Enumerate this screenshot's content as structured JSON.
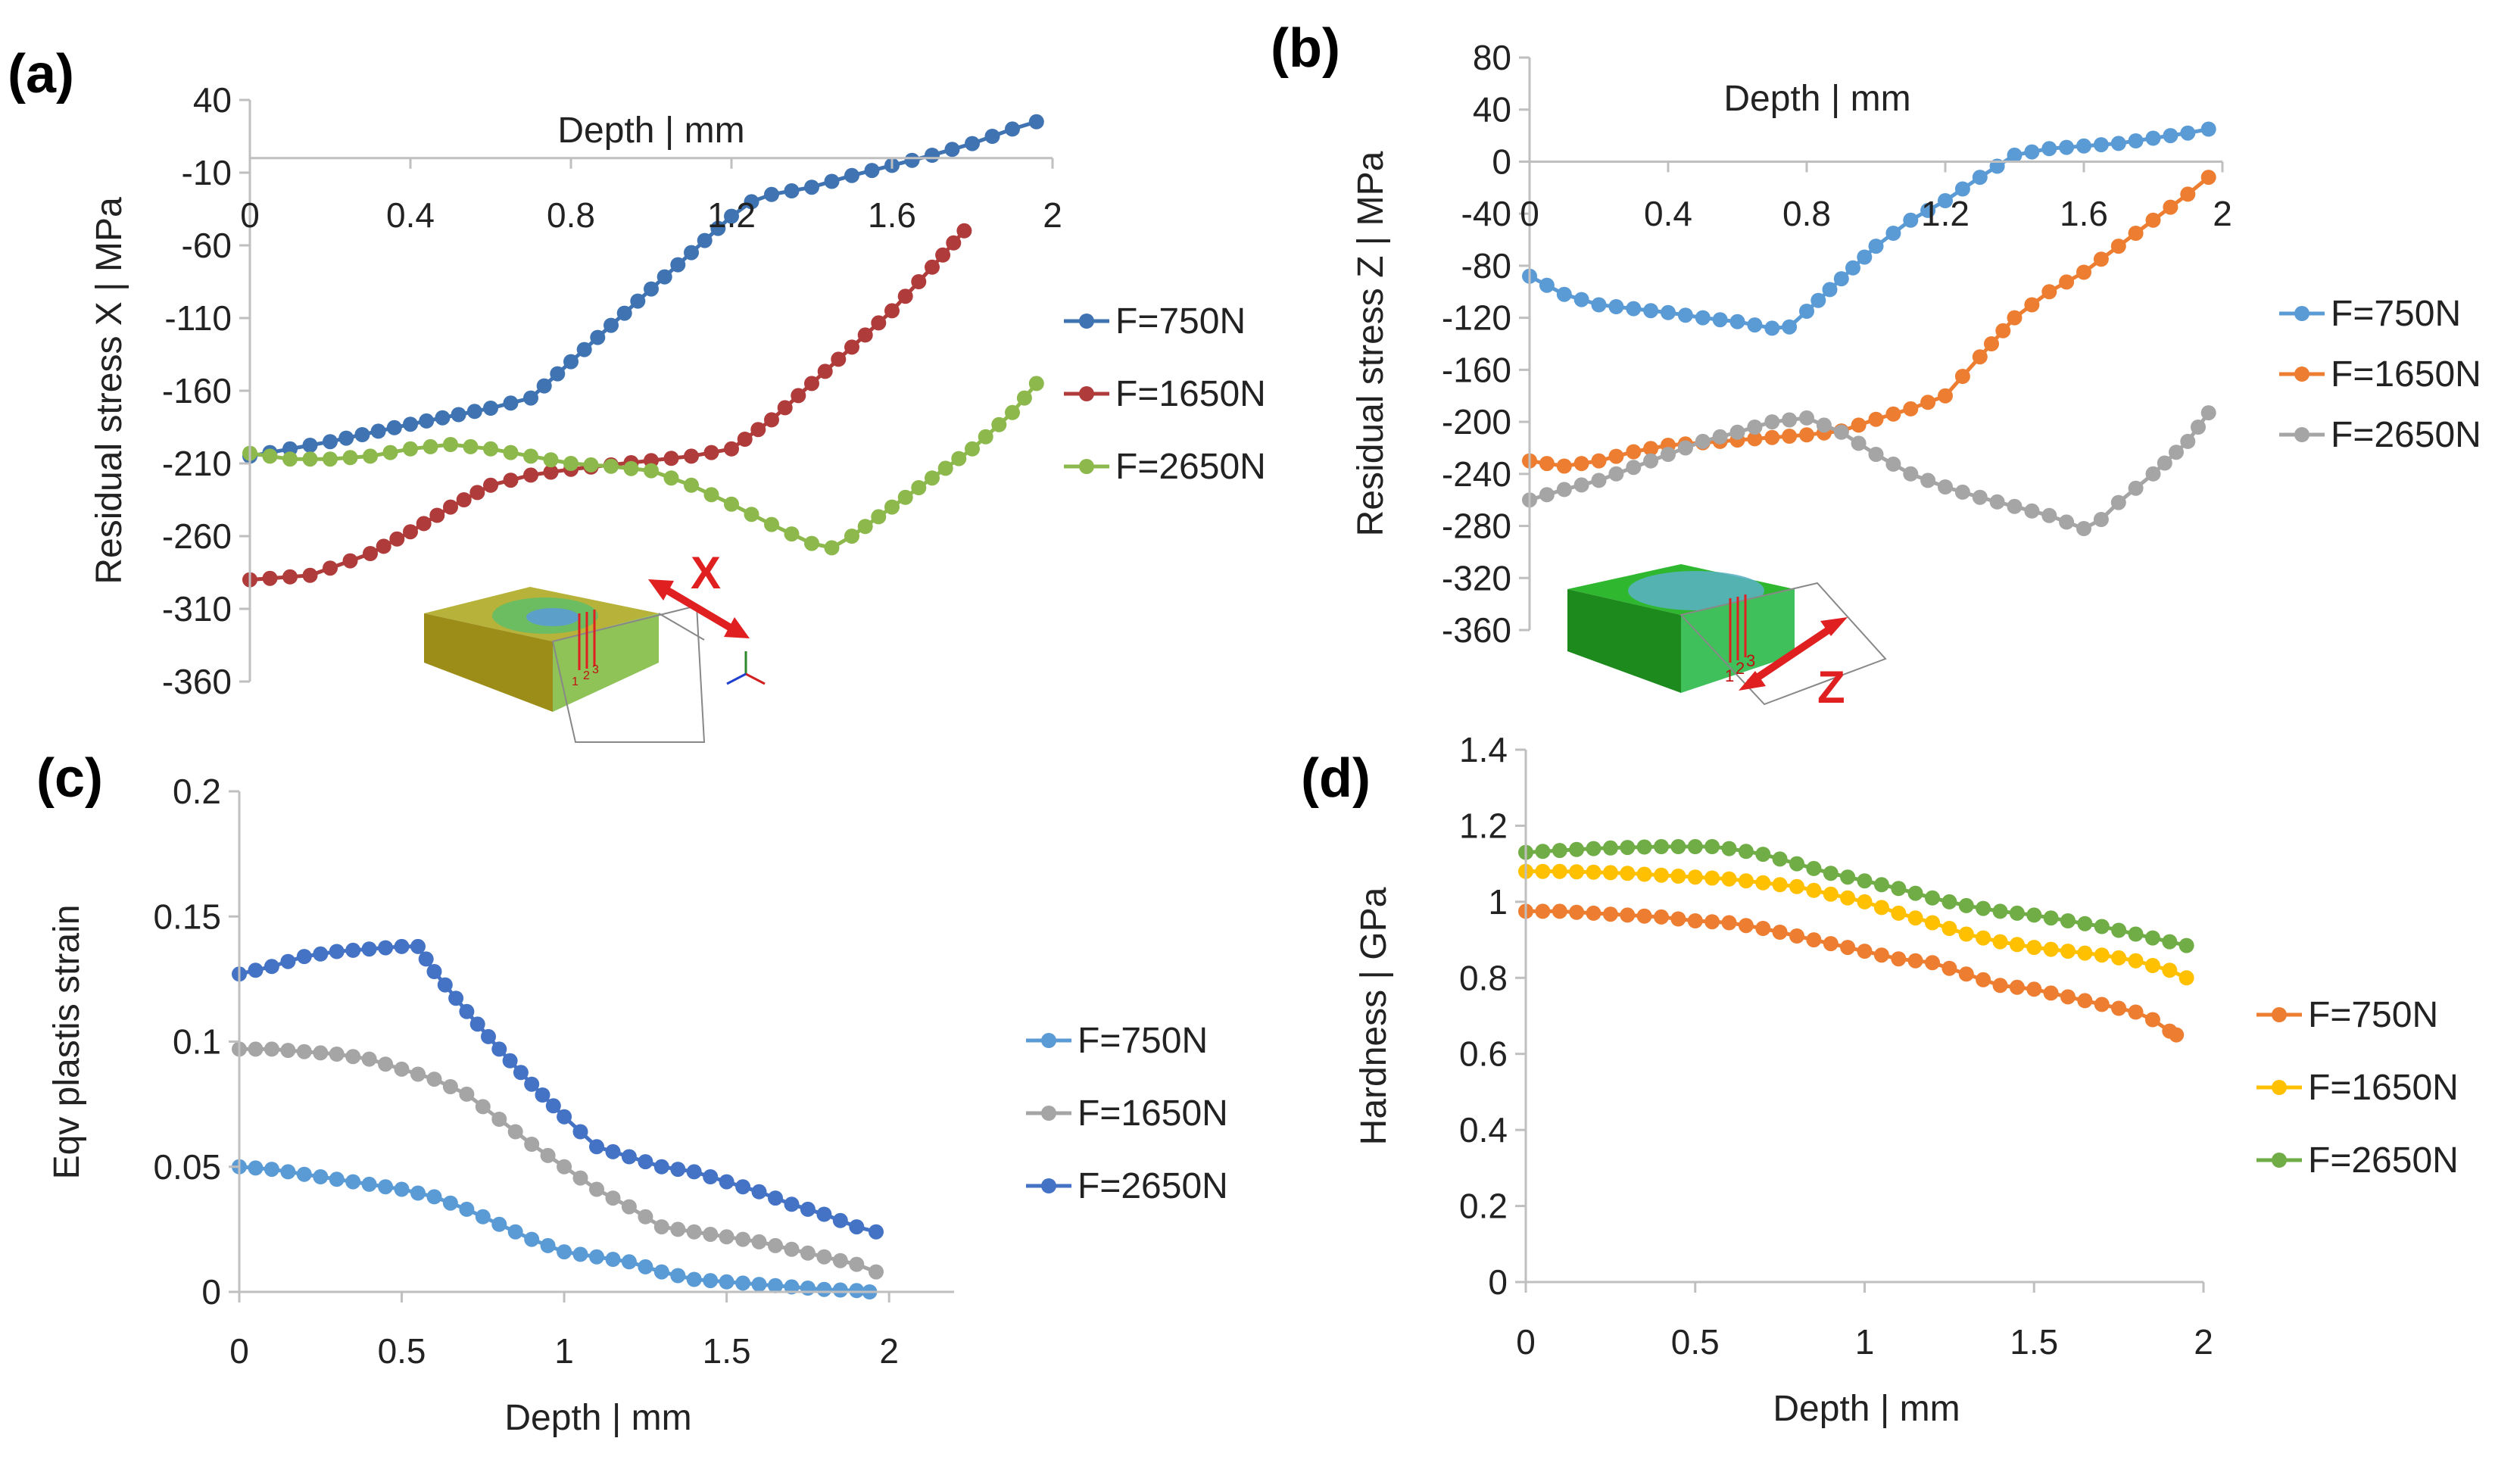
{
  "chart_data": [
    {
      "panel": "(a)",
      "type": "line",
      "xlabel": "Depth | mm",
      "ylabel": "Residual stress X | MPa",
      "xlim": [
        0,
        2
      ],
      "ylim": [
        -360,
        40
      ],
      "xticks": [
        "0",
        "0.4",
        "0.8",
        "1.2",
        "1.6",
        "2"
      ],
      "xtick_values": [
        0,
        0.4,
        0.8,
        1.2,
        1.6,
        2
      ],
      "yticks": [
        "40",
        "-10",
        "-60",
        "-110",
        "-160",
        "-210",
        "-260",
        "-310",
        "-360"
      ],
      "ytick_values": [
        40,
        -10,
        -60,
        -110,
        -160,
        -210,
        -260,
        -310,
        -360
      ],
      "x_axis_at": 0,
      "legend": "right",
      "inset_annotation": "X",
      "inset_point_labels": [
        "1",
        "2",
        "3"
      ],
      "series": [
        {
          "name": "F=750N",
          "color": "#3f73b2",
          "x": [
            0,
            0.2,
            0.4,
            0.6,
            0.7,
            0.8,
            0.9,
            1.0,
            1.1,
            1.2,
            1.25,
            1.3,
            1.4,
            1.5,
            1.6,
            1.7,
            1.8,
            1.9,
            1.96
          ],
          "y": [
            -205,
            -195,
            -183,
            -172,
            -165,
            -140,
            -115,
            -90,
            -65,
            -40,
            -30,
            -25,
            -20,
            -12,
            -5,
            2,
            10,
            20,
            25
          ]
        },
        {
          "name": "F=1650N",
          "color": "#b03b3b",
          "x": [
            0,
            0.15,
            0.2,
            0.3,
            0.4,
            0.5,
            0.6,
            0.7,
            0.8,
            0.9,
            1.0,
            1.1,
            1.2,
            1.3,
            1.4,
            1.5,
            1.6,
            1.7,
            1.78
          ],
          "y": [
            -290,
            -287,
            -282,
            -272,
            -257,
            -240,
            -225,
            -218,
            -214,
            -211,
            -208,
            -205,
            -200,
            -180,
            -155,
            -130,
            -105,
            -75,
            -50
          ]
        },
        {
          "name": "F=2650N",
          "color": "#8cb84c",
          "x": [
            0,
            0.1,
            0.2,
            0.3,
            0.4,
            0.5,
            0.6,
            0.7,
            0.8,
            0.9,
            1.0,
            1.1,
            1.2,
            1.3,
            1.4,
            1.45,
            1.5,
            1.6,
            1.7,
            1.8,
            1.9,
            1.96
          ],
          "y": [
            -203,
            -207,
            -207,
            -205,
            -200,
            -197,
            -200,
            -205,
            -210,
            -212,
            -215,
            -225,
            -238,
            -252,
            -265,
            -268,
            -260,
            -240,
            -220,
            -200,
            -175,
            -155
          ]
        }
      ]
    },
    {
      "panel": "(b)",
      "type": "line",
      "xlabel": "Depth | mm",
      "ylabel": "Residual stress Z | MPa",
      "xlim": [
        0,
        2
      ],
      "ylim": [
        -360,
        80
      ],
      "xticks": [
        "0",
        "0.4",
        "0.8",
        "1.2",
        "1.6",
        "2"
      ],
      "xtick_values": [
        0,
        0.4,
        0.8,
        1.2,
        1.6,
        2
      ],
      "yticks": [
        "80",
        "40",
        "0",
        "-40",
        "-80",
        "-120",
        "-160",
        "-200",
        "-240",
        "-280",
        "-320",
        "-360"
      ],
      "ytick_values": [
        80,
        40,
        0,
        -40,
        -80,
        -120,
        -160,
        -200,
        -240,
        -280,
        -320,
        -360
      ],
      "x_axis_at": 0,
      "legend": "right",
      "inset_annotation": "Z",
      "inset_point_labels": [
        "1",
        "2",
        "3"
      ],
      "series": [
        {
          "name": "F=750N",
          "color": "#5b9bd5",
          "x": [
            0,
            0.1,
            0.2,
            0.3,
            0.4,
            0.5,
            0.6,
            0.7,
            0.75,
            0.8,
            0.9,
            1.0,
            1.1,
            1.2,
            1.3,
            1.4,
            1.5,
            1.6,
            1.7,
            1.8,
            1.9,
            1.96
          ],
          "y": [
            -88,
            -102,
            -110,
            -113,
            -116,
            -120,
            -123,
            -128,
            -127,
            -115,
            -90,
            -65,
            -45,
            -30,
            -12,
            5,
            10,
            12,
            14,
            18,
            22,
            25
          ]
        },
        {
          "name": "F=1650N",
          "color": "#ed7d31",
          "x": [
            0,
            0.1,
            0.2,
            0.3,
            0.4,
            0.5,
            0.6,
            0.7,
            0.8,
            0.9,
            1.0,
            1.1,
            1.2,
            1.25,
            1.3,
            1.4,
            1.5,
            1.6,
            1.7,
            1.8,
            1.9,
            1.96
          ],
          "y": [
            -230,
            -234,
            -230,
            -223,
            -218,
            -216,
            -214,
            -212,
            -210,
            -207,
            -198,
            -190,
            -180,
            -165,
            -150,
            -120,
            -100,
            -85,
            -65,
            -45,
            -25,
            -12
          ]
        },
        {
          "name": "F=2650N",
          "color": "#a5a5a5",
          "x": [
            0,
            0.1,
            0.2,
            0.3,
            0.4,
            0.5,
            0.6,
            0.7,
            0.8,
            0.9,
            1.0,
            1.1,
            1.2,
            1.3,
            1.4,
            1.5,
            1.6,
            1.65,
            1.7,
            1.8,
            1.9,
            1.96
          ],
          "y": [
            -260,
            -252,
            -245,
            -235,
            -225,
            -215,
            -208,
            -200,
            -197,
            -208,
            -225,
            -240,
            -250,
            -258,
            -265,
            -272,
            -282,
            -275,
            -262,
            -240,
            -215,
            -193
          ]
        }
      ]
    },
    {
      "panel": "(c)",
      "type": "line",
      "xlabel": "Depth | mm",
      "ylabel": "Eqv plastis strain",
      "xlim": [
        0,
        2.2
      ],
      "ylim": [
        0,
        0.2
      ],
      "xticks": [
        "0",
        "0.5",
        "1",
        "1.5",
        "2"
      ],
      "xtick_values": [
        0,
        0.5,
        1,
        1.5,
        2
      ],
      "yticks": [
        "0.2",
        "0.15",
        "0.1",
        "0.05",
        "0"
      ],
      "ytick_values": [
        0.2,
        0.15,
        0.1,
        0.05,
        0
      ],
      "legend": "right",
      "series": [
        {
          "name": "F=750N",
          "color": "#5b9bd5",
          "x": [
            0,
            0.1,
            0.2,
            0.3,
            0.4,
            0.5,
            0.6,
            0.7,
            0.8,
            0.9,
            1.0,
            1.1,
            1.2,
            1.3,
            1.4,
            1.5,
            1.6,
            1.7,
            1.8,
            1.9,
            1.94
          ],
          "y": [
            0.05,
            0.049,
            0.047,
            0.045,
            0.043,
            0.041,
            0.038,
            0.033,
            0.027,
            0.021,
            0.016,
            0.014,
            0.012,
            0.008,
            0.005,
            0.004,
            0.003,
            0.002,
            0.001,
            0.0005,
            0.0
          ]
        },
        {
          "name": "F=1650N",
          "color": "#a5a5a5",
          "x": [
            0,
            0.1,
            0.2,
            0.3,
            0.4,
            0.5,
            0.6,
            0.7,
            0.8,
            0.9,
            1.0,
            1.1,
            1.2,
            1.3,
            1.4,
            1.5,
            1.6,
            1.7,
            1.8,
            1.9,
            1.96
          ],
          "y": [
            0.097,
            0.097,
            0.096,
            0.095,
            0.093,
            0.089,
            0.085,
            0.079,
            0.069,
            0.059,
            0.05,
            0.041,
            0.034,
            0.026,
            0.024,
            0.022,
            0.02,
            0.017,
            0.014,
            0.011,
            0.008
          ]
        },
        {
          "name": "F=2650N",
          "color": "#4472c4",
          "x": [
            0,
            0.1,
            0.2,
            0.3,
            0.4,
            0.5,
            0.55,
            0.6,
            0.7,
            0.8,
            0.9,
            1.0,
            1.1,
            1.2,
            1.3,
            1.4,
            1.5,
            1.6,
            1.7,
            1.8,
            1.9,
            1.96
          ],
          "y": [
            0.127,
            0.13,
            0.134,
            0.136,
            0.137,
            0.138,
            0.138,
            0.128,
            0.112,
            0.097,
            0.083,
            0.07,
            0.058,
            0.054,
            0.05,
            0.048,
            0.044,
            0.04,
            0.035,
            0.031,
            0.026,
            0.024
          ]
        }
      ]
    },
    {
      "panel": "(d)",
      "type": "line",
      "xlabel": "Depth | mm",
      "ylabel": "Hardness | GPa",
      "xlim": [
        0,
        2
      ],
      "ylim": [
        0,
        1.4
      ],
      "xticks": [
        "0",
        "0.5",
        "1",
        "1.5",
        "2"
      ],
      "xtick_values": [
        0,
        0.5,
        1,
        1.5,
        2
      ],
      "yticks": [
        "1.4",
        "1.2",
        "1",
        "0.8",
        "0.6",
        "0.4",
        "0.2",
        "0"
      ],
      "ytick_values": [
        1.4,
        1.2,
        1.0,
        0.8,
        0.6,
        0.4,
        0.2,
        0
      ],
      "legend": "right",
      "series": [
        {
          "name": "F=750N",
          "color": "#ed7d31",
          "x": [
            0,
            0.1,
            0.2,
            0.3,
            0.4,
            0.5,
            0.6,
            0.7,
            0.8,
            0.9,
            1.0,
            1.1,
            1.2,
            1.3,
            1.4,
            1.5,
            1.6,
            1.7,
            1.8,
            1.85,
            1.9,
            1.92
          ],
          "y": [
            0.975,
            0.975,
            0.97,
            0.965,
            0.96,
            0.95,
            0.945,
            0.93,
            0.91,
            0.89,
            0.87,
            0.85,
            0.84,
            0.81,
            0.78,
            0.77,
            0.75,
            0.73,
            0.71,
            0.69,
            0.66,
            0.65
          ]
        },
        {
          "name": "F=1650N",
          "color": "#ffc000",
          "x": [
            0,
            0.1,
            0.2,
            0.3,
            0.4,
            0.5,
            0.6,
            0.7,
            0.8,
            0.9,
            1.0,
            1.1,
            1.2,
            1.3,
            1.4,
            1.5,
            1.6,
            1.7,
            1.8,
            1.9,
            1.95
          ],
          "y": [
            1.08,
            1.08,
            1.078,
            1.075,
            1.07,
            1.065,
            1.06,
            1.05,
            1.04,
            1.02,
            1.0,
            0.97,
            0.945,
            0.915,
            0.895,
            0.88,
            0.87,
            0.86,
            0.845,
            0.82,
            0.8
          ]
        },
        {
          "name": "F=2650N",
          "color": "#70ad47",
          "x": [
            0,
            0.1,
            0.2,
            0.3,
            0.4,
            0.5,
            0.55,
            0.6,
            0.7,
            0.8,
            0.9,
            1.0,
            1.1,
            1.2,
            1.3,
            1.4,
            1.5,
            1.6,
            1.7,
            1.8,
            1.9,
            1.95
          ],
          "y": [
            1.13,
            1.135,
            1.14,
            1.143,
            1.145,
            1.145,
            1.145,
            1.14,
            1.125,
            1.1,
            1.075,
            1.055,
            1.035,
            1.01,
            0.99,
            0.975,
            0.965,
            0.95,
            0.935,
            0.915,
            0.895,
            0.885
          ]
        }
      ]
    }
  ]
}
